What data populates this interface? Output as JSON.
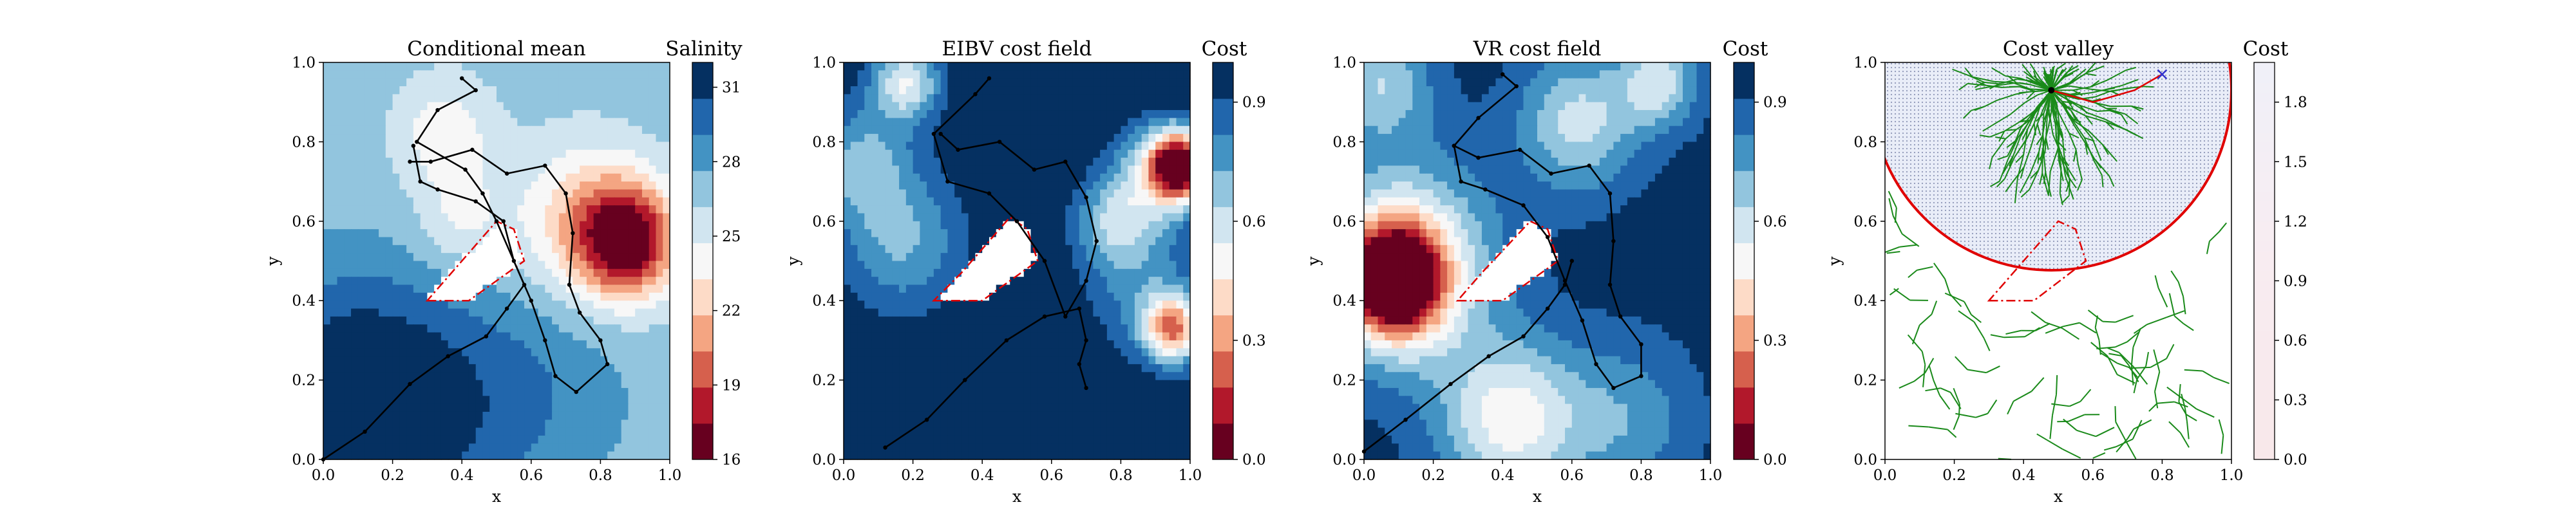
{
  "chart_data": [
    {
      "type": "heatmap",
      "title": "Conditional mean",
      "xlabel": "x",
      "ylabel": "y",
      "xlim": [
        0,
        1
      ],
      "ylim": [
        0,
        1
      ],
      "xticks": [
        "0.0",
        "0.2",
        "0.4",
        "0.6",
        "0.8",
        "1.0"
      ],
      "yticks": [
        "0.0",
        "0.2",
        "0.4",
        "0.6",
        "0.8",
        "1.0"
      ],
      "colorbar": {
        "title": "Salinity",
        "range": [
          16,
          32
        ],
        "ticks": [
          "16",
          "19",
          "22",
          "25",
          "28",
          "31"
        ],
        "colormap": "RdBu"
      },
      "field_features": [
        {
          "kind": "low",
          "x": 0.86,
          "y": 0.55,
          "level": 16.5
        },
        {
          "kind": "high",
          "x": 0.18,
          "y": 0.12,
          "level": 31.5
        },
        {
          "kind": "mid",
          "x": 0.35,
          "y": 0.82,
          "level": 23.5
        }
      ],
      "path": [
        [
          0.0,
          0.0
        ],
        [
          0.12,
          0.07
        ],
        [
          0.25,
          0.19
        ],
        [
          0.36,
          0.26
        ],
        [
          0.47,
          0.31
        ],
        [
          0.53,
          0.38
        ],
        [
          0.58,
          0.44
        ],
        [
          0.5,
          0.6
        ],
        [
          0.46,
          0.67
        ],
        [
          0.41,
          0.73
        ],
        [
          0.27,
          0.8
        ],
        [
          0.33,
          0.88
        ],
        [
          0.44,
          0.93
        ],
        [
          0.4,
          0.96
        ]
      ],
      "path2": [
        [
          0.25,
          0.75
        ],
        [
          0.31,
          0.75
        ],
        [
          0.43,
          0.78
        ],
        [
          0.53,
          0.72
        ],
        [
          0.64,
          0.74
        ],
        [
          0.7,
          0.67
        ],
        [
          0.72,
          0.57
        ],
        [
          0.71,
          0.44
        ],
        [
          0.74,
          0.37
        ],
        [
          0.8,
          0.3
        ],
        [
          0.82,
          0.24
        ],
        [
          0.73,
          0.17
        ],
        [
          0.67,
          0.21
        ],
        [
          0.64,
          0.3
        ],
        [
          0.6,
          0.4
        ],
        [
          0.55,
          0.5
        ],
        [
          0.52,
          0.6
        ],
        [
          0.44,
          0.65
        ],
        [
          0.33,
          0.68
        ],
        [
          0.28,
          0.7
        ],
        [
          0.26,
          0.79
        ]
      ],
      "obstacle": [
        [
          0.3,
          0.4
        ],
        [
          0.42,
          0.4
        ],
        [
          0.58,
          0.5
        ],
        [
          0.55,
          0.58
        ],
        [
          0.5,
          0.6
        ],
        [
          0.36,
          0.46
        ]
      ]
    },
    {
      "type": "heatmap",
      "title": "EIBV cost field",
      "xlabel": "x",
      "ylabel": "y",
      "xlim": [
        0,
        1
      ],
      "ylim": [
        0,
        1
      ],
      "xticks": [
        "0.0",
        "0.2",
        "0.4",
        "0.6",
        "0.8",
        "1.0"
      ],
      "yticks": [
        "0.0",
        "0.2",
        "0.4",
        "0.6",
        "0.8",
        "1.0"
      ],
      "colorbar": {
        "title": "Cost",
        "range": [
          0,
          1
        ],
        "ticks": [
          "0.0",
          "0.3",
          "0.6",
          "0.9"
        ],
        "colormap": "RdBu"
      },
      "field_features": [
        {
          "kind": "low",
          "x": 0.97,
          "y": 0.74,
          "level": 0.1
        },
        {
          "kind": "low",
          "x": 0.95,
          "y": 0.33,
          "level": 0.25
        },
        {
          "kind": "mid",
          "x": 0.17,
          "y": 0.55,
          "level": 0.72
        },
        {
          "kind": "mid",
          "x": 0.2,
          "y": 0.92,
          "level": 0.7
        }
      ],
      "path": [
        [
          0.12,
          0.03
        ],
        [
          0.24,
          0.1
        ],
        [
          0.35,
          0.2
        ],
        [
          0.47,
          0.3
        ],
        [
          0.58,
          0.36
        ],
        [
          0.68,
          0.38
        ],
        [
          0.7,
          0.3
        ],
        [
          0.68,
          0.24
        ],
        [
          0.7,
          0.18
        ]
      ],
      "path2": [
        [
          0.28,
          0.82
        ],
        [
          0.33,
          0.78
        ],
        [
          0.45,
          0.8
        ],
        [
          0.55,
          0.73
        ],
        [
          0.64,
          0.75
        ],
        [
          0.7,
          0.66
        ],
        [
          0.73,
          0.55
        ],
        [
          0.7,
          0.45
        ],
        [
          0.64,
          0.36
        ],
        [
          0.58,
          0.5
        ],
        [
          0.5,
          0.6
        ],
        [
          0.42,
          0.67
        ],
        [
          0.3,
          0.7
        ],
        [
          0.26,
          0.82
        ],
        [
          0.38,
          0.92
        ],
        [
          0.42,
          0.96
        ]
      ],
      "obstacle": [
        [
          0.26,
          0.4
        ],
        [
          0.4,
          0.4
        ],
        [
          0.56,
          0.5
        ],
        [
          0.53,
          0.58
        ],
        [
          0.48,
          0.61
        ],
        [
          0.34,
          0.47
        ]
      ]
    },
    {
      "type": "heatmap",
      "title": "VR cost field",
      "xlabel": "x",
      "ylabel": "y",
      "xlim": [
        0,
        1
      ],
      "ylim": [
        0,
        1
      ],
      "xticks": [
        "0.0",
        "0.2",
        "0.4",
        "0.6",
        "0.8",
        "1.0"
      ],
      "yticks": [
        "0.0",
        "0.2",
        "0.4",
        "0.6",
        "0.8",
        "1.0"
      ],
      "colorbar": {
        "title": "Cost",
        "range": [
          0,
          1
        ],
        "ticks": [
          "0.0",
          "0.3",
          "0.6",
          "0.9"
        ],
        "colormap": "RdBu"
      },
      "field_features": [
        {
          "kind": "low",
          "x": 0.1,
          "y": 0.45,
          "level": 0.05
        },
        {
          "kind": "mid",
          "x": 0.45,
          "y": 0.11,
          "level": 0.5
        },
        {
          "kind": "mid",
          "x": 0.85,
          "y": 0.95,
          "level": 0.35
        },
        {
          "kind": "mid",
          "x": 0.65,
          "y": 0.78,
          "level": 0.55
        }
      ],
      "path": [
        [
          0.0,
          0.02
        ],
        [
          0.12,
          0.1
        ],
        [
          0.25,
          0.19
        ],
        [
          0.36,
          0.26
        ],
        [
          0.46,
          0.31
        ],
        [
          0.53,
          0.38
        ],
        [
          0.58,
          0.44
        ],
        [
          0.6,
          0.5
        ]
      ],
      "path2": [
        [
          0.26,
          0.79
        ],
        [
          0.33,
          0.76
        ],
        [
          0.45,
          0.78
        ],
        [
          0.54,
          0.72
        ],
        [
          0.65,
          0.74
        ],
        [
          0.71,
          0.67
        ],
        [
          0.72,
          0.55
        ],
        [
          0.71,
          0.44
        ],
        [
          0.74,
          0.36
        ],
        [
          0.8,
          0.29
        ],
        [
          0.8,
          0.21
        ],
        [
          0.72,
          0.18
        ],
        [
          0.67,
          0.24
        ],
        [
          0.63,
          0.35
        ],
        [
          0.58,
          0.45
        ],
        [
          0.53,
          0.56
        ],
        [
          0.46,
          0.64
        ],
        [
          0.35,
          0.68
        ],
        [
          0.28,
          0.7
        ],
        [
          0.26,
          0.79
        ],
        [
          0.33,
          0.86
        ],
        [
          0.44,
          0.94
        ],
        [
          0.4,
          0.97
        ]
      ],
      "obstacle": [
        [
          0.27,
          0.4
        ],
        [
          0.4,
          0.4
        ],
        [
          0.56,
          0.5
        ],
        [
          0.53,
          0.58
        ],
        [
          0.48,
          0.6
        ],
        [
          0.34,
          0.47
        ]
      ]
    },
    {
      "type": "heatmap",
      "title": "Cost valley",
      "xlabel": "x",
      "ylabel": "y",
      "xlim": [
        0,
        1
      ],
      "ylim": [
        0,
        1
      ],
      "xticks": [
        "0.0",
        "0.2",
        "0.4",
        "0.6",
        "0.8",
        "1.0"
      ],
      "yticks": [
        "0.0",
        "0.2",
        "0.4",
        "0.6",
        "0.8",
        "1.0"
      ],
      "colorbar": {
        "title": "Cost",
        "range": [
          0,
          2
        ],
        "ticks": [
          "0.0",
          "0.3",
          "0.6",
          "0.9",
          "1.2",
          "1.5",
          "1.8"
        ],
        "colormap": "RdBu"
      },
      "budget_circle": {
        "center": [
          0.48,
          0.93
        ],
        "radius": 0.52
      },
      "tree_root": [
        0.48,
        0.93
      ],
      "target": [
        0.8,
        0.97
      ],
      "obstacle": [
        [
          0.3,
          0.4
        ],
        [
          0.43,
          0.4
        ],
        [
          0.58,
          0.5
        ],
        [
          0.55,
          0.58
        ],
        [
          0.5,
          0.6
        ],
        [
          0.36,
          0.46
        ]
      ]
    }
  ]
}
